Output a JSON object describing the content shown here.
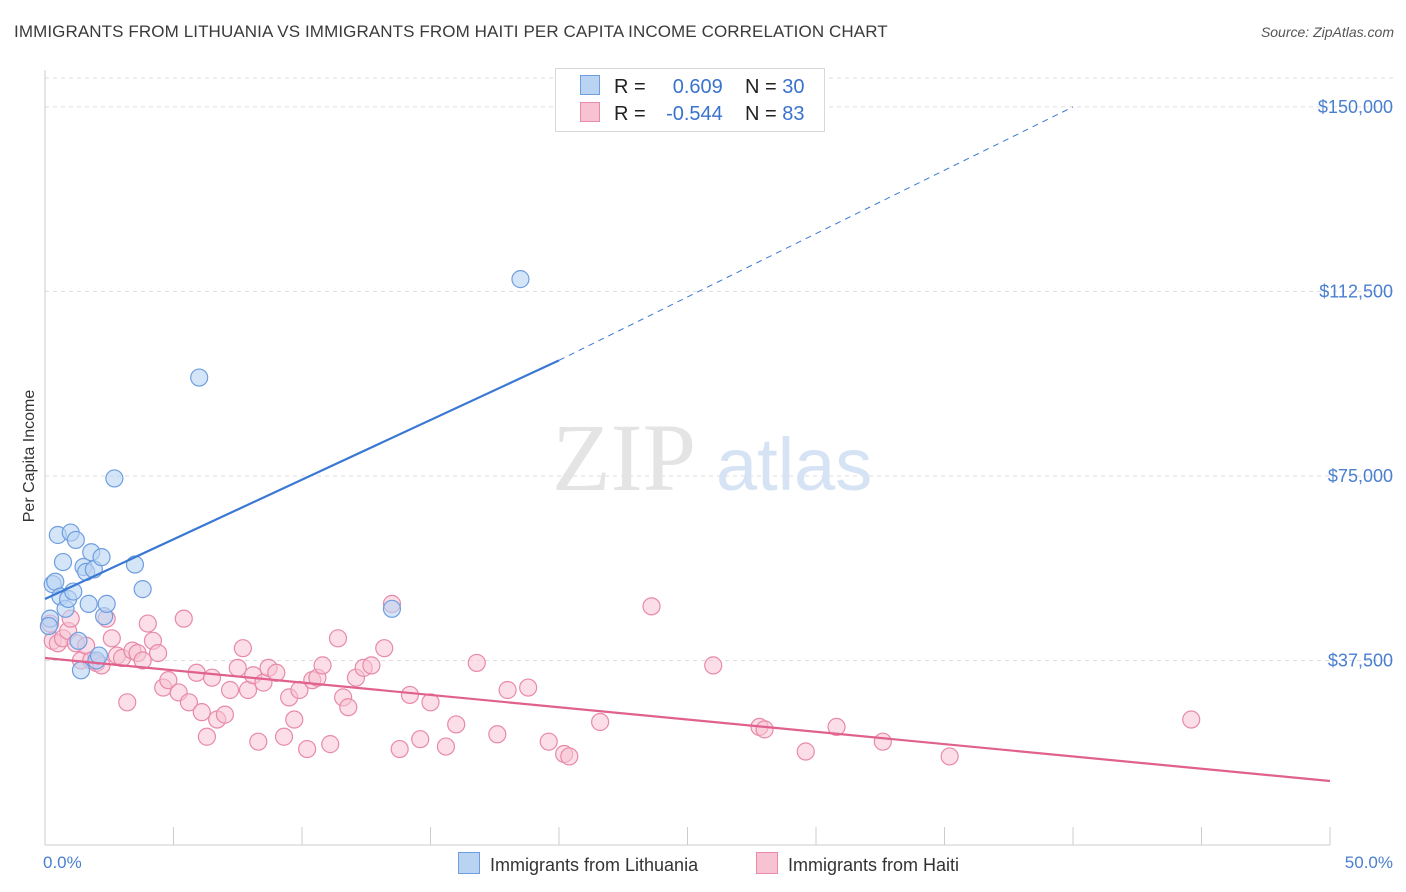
{
  "title": "IMMIGRANTS FROM LITHUANIA VS IMMIGRANTS FROM HAITI PER CAPITA INCOME CORRELATION CHART",
  "source": "Source: ZipAtlas.com",
  "watermark": {
    "zip": "ZIP",
    "atlas": "atlas"
  },
  "legend": {
    "r_label": "R =",
    "n_label": "N =",
    "lithuania": {
      "r": "0.609",
      "n": "30"
    },
    "haiti": {
      "r": "-0.544",
      "n": "83"
    }
  },
  "bottom_legend": {
    "lithuania": "Immigrants from Lithuania",
    "haiti": "Immigrants from Haiti"
  },
  "colors": {
    "lithuania_fill": "#b9d3f3",
    "lithuania_stroke": "#6f9ee0",
    "lithuania_line": "#3a78d4",
    "haiti_fill": "#f7c3d3",
    "haiti_stroke": "#e88aa8",
    "haiti_line": "#e0608e",
    "tick_text": "#4a7fd0",
    "grid": "#dddddd"
  },
  "chart_data": {
    "type": "scatter",
    "xlabel": "",
    "ylabel": "Per Capita Income",
    "xlim": [
      0,
      50
    ],
    "ylim": [
      0,
      157500
    ],
    "x_tick_labels": [
      "0.0%",
      "50.0%"
    ],
    "y_ticks": [
      37500,
      75000,
      112500,
      150000
    ],
    "y_tick_labels": [
      "$37,500",
      "$75,000",
      "$112,500",
      "$150,000"
    ],
    "grid": true,
    "legend_position": "top-center",
    "series": [
      {
        "name": "Immigrants from Lithuania",
        "points": [
          [
            0.3,
            53000
          ],
          [
            0.4,
            53500
          ],
          [
            0.5,
            63000
          ],
          [
            0.6,
            50500
          ],
          [
            0.7,
            57500
          ],
          [
            0.8,
            48000
          ],
          [
            0.9,
            50000
          ],
          [
            1.0,
            63500
          ],
          [
            1.1,
            51500
          ],
          [
            1.2,
            62000
          ],
          [
            1.3,
            41500
          ],
          [
            1.4,
            35500
          ],
          [
            1.5,
            56500
          ],
          [
            1.6,
            55500
          ],
          [
            1.7,
            49000
          ],
          [
            1.8,
            59500
          ],
          [
            1.9,
            56000
          ],
          [
            2.0,
            37500
          ],
          [
            2.1,
            38500
          ],
          [
            2.2,
            58500
          ],
          [
            2.3,
            46500
          ],
          [
            2.4,
            49000
          ],
          [
            2.7,
            74500
          ],
          [
            3.5,
            57000
          ],
          [
            3.8,
            52000
          ],
          [
            6.0,
            95000
          ],
          [
            13.5,
            48000
          ],
          [
            18.5,
            115000
          ],
          [
            0.2,
            46000
          ],
          [
            0.15,
            44500
          ]
        ],
        "trend": {
          "x": [
            0,
            20
          ],
          "y": [
            50000,
            98500
          ],
          "dashed_extension": {
            "x": [
              20,
              40
            ],
            "y": [
              98500,
              150000
            ]
          }
        }
      },
      {
        "name": "Immigrants from Haiti",
        "points": [
          [
            0.2,
            45000
          ],
          [
            0.3,
            41500
          ],
          [
            0.5,
            41000
          ],
          [
            0.7,
            42000
          ],
          [
            0.9,
            43500
          ],
          [
            1.0,
            46000
          ],
          [
            1.2,
            41000
          ],
          [
            1.4,
            37500
          ],
          [
            1.6,
            40500
          ],
          [
            1.8,
            37500
          ],
          [
            2.0,
            37000
          ],
          [
            2.2,
            36500
          ],
          [
            2.4,
            46000
          ],
          [
            2.6,
            42000
          ],
          [
            2.8,
            38500
          ],
          [
            3.0,
            38000
          ],
          [
            3.2,
            29000
          ],
          [
            3.4,
            39500
          ],
          [
            3.6,
            39000
          ],
          [
            3.8,
            37500
          ],
          [
            4.0,
            45000
          ],
          [
            4.2,
            41500
          ],
          [
            4.4,
            39000
          ],
          [
            4.6,
            32000
          ],
          [
            4.8,
            33500
          ],
          [
            5.2,
            31000
          ],
          [
            5.4,
            46000
          ],
          [
            5.6,
            29000
          ],
          [
            5.9,
            35000
          ],
          [
            6.1,
            27000
          ],
          [
            6.3,
            22000
          ],
          [
            6.5,
            34000
          ],
          [
            6.7,
            25500
          ],
          [
            7.0,
            26500
          ],
          [
            7.2,
            31500
          ],
          [
            7.5,
            36000
          ],
          [
            7.7,
            40000
          ],
          [
            7.9,
            31500
          ],
          [
            8.1,
            34500
          ],
          [
            8.3,
            21000
          ],
          [
            8.5,
            33000
          ],
          [
            8.7,
            36000
          ],
          [
            9.0,
            35000
          ],
          [
            9.3,
            22000
          ],
          [
            9.5,
            30000
          ],
          [
            9.7,
            25500
          ],
          [
            9.9,
            31500
          ],
          [
            10.2,
            19500
          ],
          [
            10.4,
            33500
          ],
          [
            10.6,
            34000
          ],
          [
            10.8,
            36500
          ],
          [
            11.1,
            20500
          ],
          [
            11.4,
            42000
          ],
          [
            11.6,
            30000
          ],
          [
            11.8,
            28000
          ],
          [
            12.1,
            34000
          ],
          [
            12.4,
            36000
          ],
          [
            12.7,
            36500
          ],
          [
            13.2,
            40000
          ],
          [
            13.5,
            49000
          ],
          [
            13.8,
            19500
          ],
          [
            14.2,
            30500
          ],
          [
            14.6,
            21500
          ],
          [
            15.0,
            29000
          ],
          [
            15.6,
            20000
          ],
          [
            16.0,
            24500
          ],
          [
            16.8,
            37000
          ],
          [
            17.6,
            22500
          ],
          [
            18.0,
            31500
          ],
          [
            18.8,
            32000
          ],
          [
            19.6,
            21000
          ],
          [
            20.2,
            18500
          ],
          [
            20.4,
            18000
          ],
          [
            21.6,
            25000
          ],
          [
            23.6,
            48500
          ],
          [
            26.0,
            36500
          ],
          [
            27.8,
            24000
          ],
          [
            28.0,
            23500
          ],
          [
            29.6,
            19000
          ],
          [
            30.8,
            24000
          ],
          [
            32.6,
            21000
          ],
          [
            35.2,
            18000
          ],
          [
            44.6,
            25500
          ]
        ],
        "trend": {
          "x": [
            0,
            50
          ],
          "y": [
            38000,
            13000
          ]
        }
      }
    ]
  }
}
